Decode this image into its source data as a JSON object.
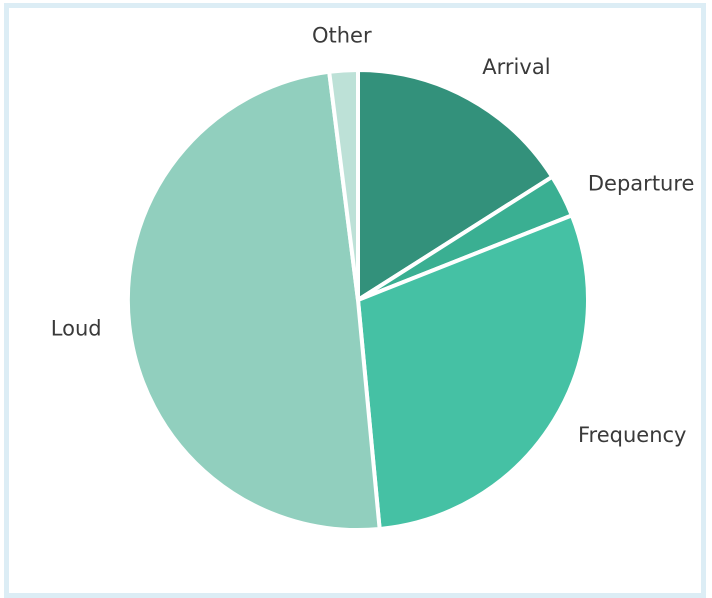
{
  "chart_data": {
    "type": "pie",
    "categories": [
      "Arrival",
      "Departure",
      "Frequency",
      "Loud",
      "Other"
    ],
    "values": [
      16,
      3,
      29.5,
      49.5,
      2
    ],
    "colors": [
      "#33917b",
      "#3aaf92",
      "#45c1a4",
      "#91cfbe",
      "#bde1d7"
    ],
    "start_angle_deg": 0,
    "direction": "clockwise",
    "slice_border_color": "#ffffff",
    "legend": "none",
    "data_labels": "category names outside slices"
  }
}
